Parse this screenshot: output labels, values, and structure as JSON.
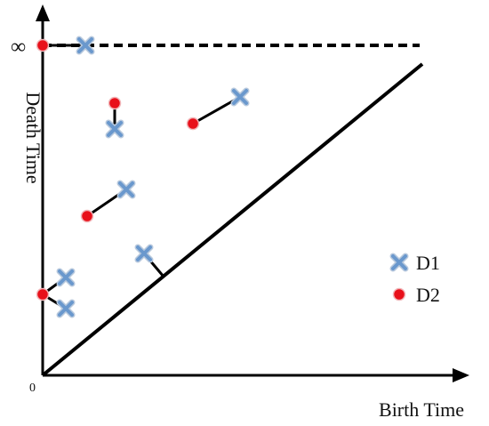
{
  "labels": {
    "origin": "0",
    "infinity": "∞",
    "y_axis": "Death Time",
    "x_axis": "Birth Time"
  },
  "legend": {
    "d1": "D1",
    "d2": "D2"
  },
  "colors": {
    "d1_cross": "#6a98cd",
    "d1_cross_outline": "#b9c9dd",
    "d2_dot": "#e8101a",
    "d2_dot_outline": "#f1b7ba",
    "ink": "#000000"
  },
  "icons": {
    "d1": "cross-marker-icon",
    "d2": "dot-marker-icon"
  }
}
